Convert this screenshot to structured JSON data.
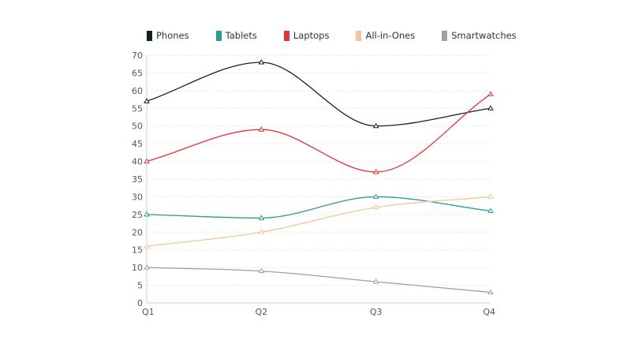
{
  "chart_data": {
    "type": "line",
    "categories": [
      "Q1",
      "Q2",
      "Q3",
      "Q4"
    ],
    "ylim": [
      0,
      70
    ],
    "yticks": [
      0,
      5,
      10,
      15,
      20,
      25,
      30,
      35,
      40,
      45,
      50,
      55,
      60,
      65,
      70
    ],
    "grid": true,
    "legend_placement": "top",
    "series": [
      {
        "name": "Phones",
        "color": "#0f2326",
        "values": [
          57,
          68,
          50,
          55
        ]
      },
      {
        "name": "Tablets",
        "color": "#2a9d8f",
        "values": [
          25,
          24,
          30,
          26
        ]
      },
      {
        "name": "Laptops",
        "color": "#e63238",
        "values": [
          40,
          49,
          37,
          59
        ]
      },
      {
        "name": "All-in-Ones",
        "color": "#f4c59a",
        "values": [
          16,
          20,
          27,
          30
        ]
      },
      {
        "name": "Smartwatches",
        "color": "#a59e99",
        "values": [
          10,
          9,
          6,
          3
        ]
      }
    ]
  }
}
